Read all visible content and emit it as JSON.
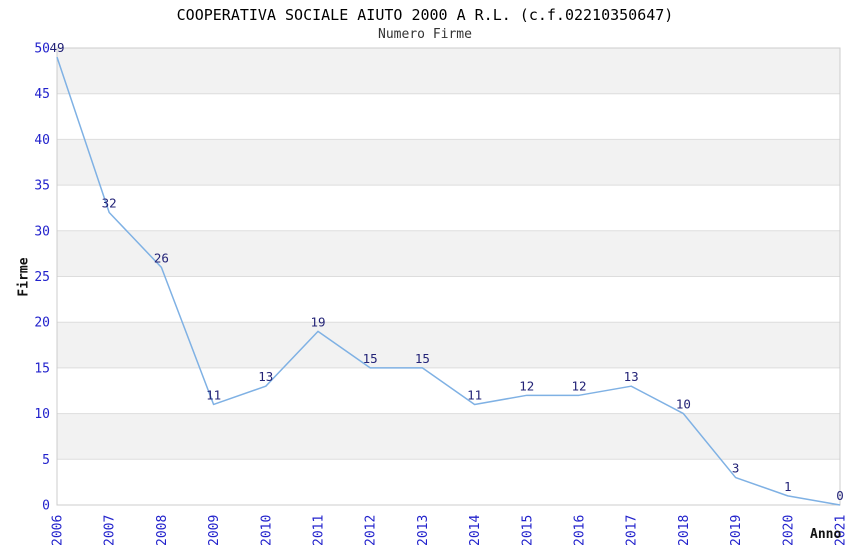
{
  "chart_data": {
    "type": "line",
    "title": "COOPERATIVA SOCIALE AIUTO 2000 A R.L. (c.f.02210350647)",
    "subtitle": "Numero Firme",
    "xlabel": "Anno",
    "ylabel": "Firme",
    "x": [
      "2006",
      "2007",
      "2008",
      "2009",
      "2010",
      "2011",
      "2012",
      "2013",
      "2014",
      "2015",
      "2016",
      "2017",
      "2018",
      "2019",
      "2020",
      "2021"
    ],
    "values": [
      49,
      32,
      26,
      11,
      13,
      19,
      15,
      15,
      11,
      12,
      12,
      13,
      10,
      3,
      1,
      0
    ],
    "ylim": [
      0,
      50
    ],
    "ytick_step": 5,
    "grid": true,
    "legend": null,
    "band_fill": "#f2f2f2",
    "grid_color": "#dddddd",
    "border_color": "#cccccc",
    "line_color": "#7fb1e4",
    "tick_label_color": "#2222cc",
    "value_label_color": "#232377"
  }
}
